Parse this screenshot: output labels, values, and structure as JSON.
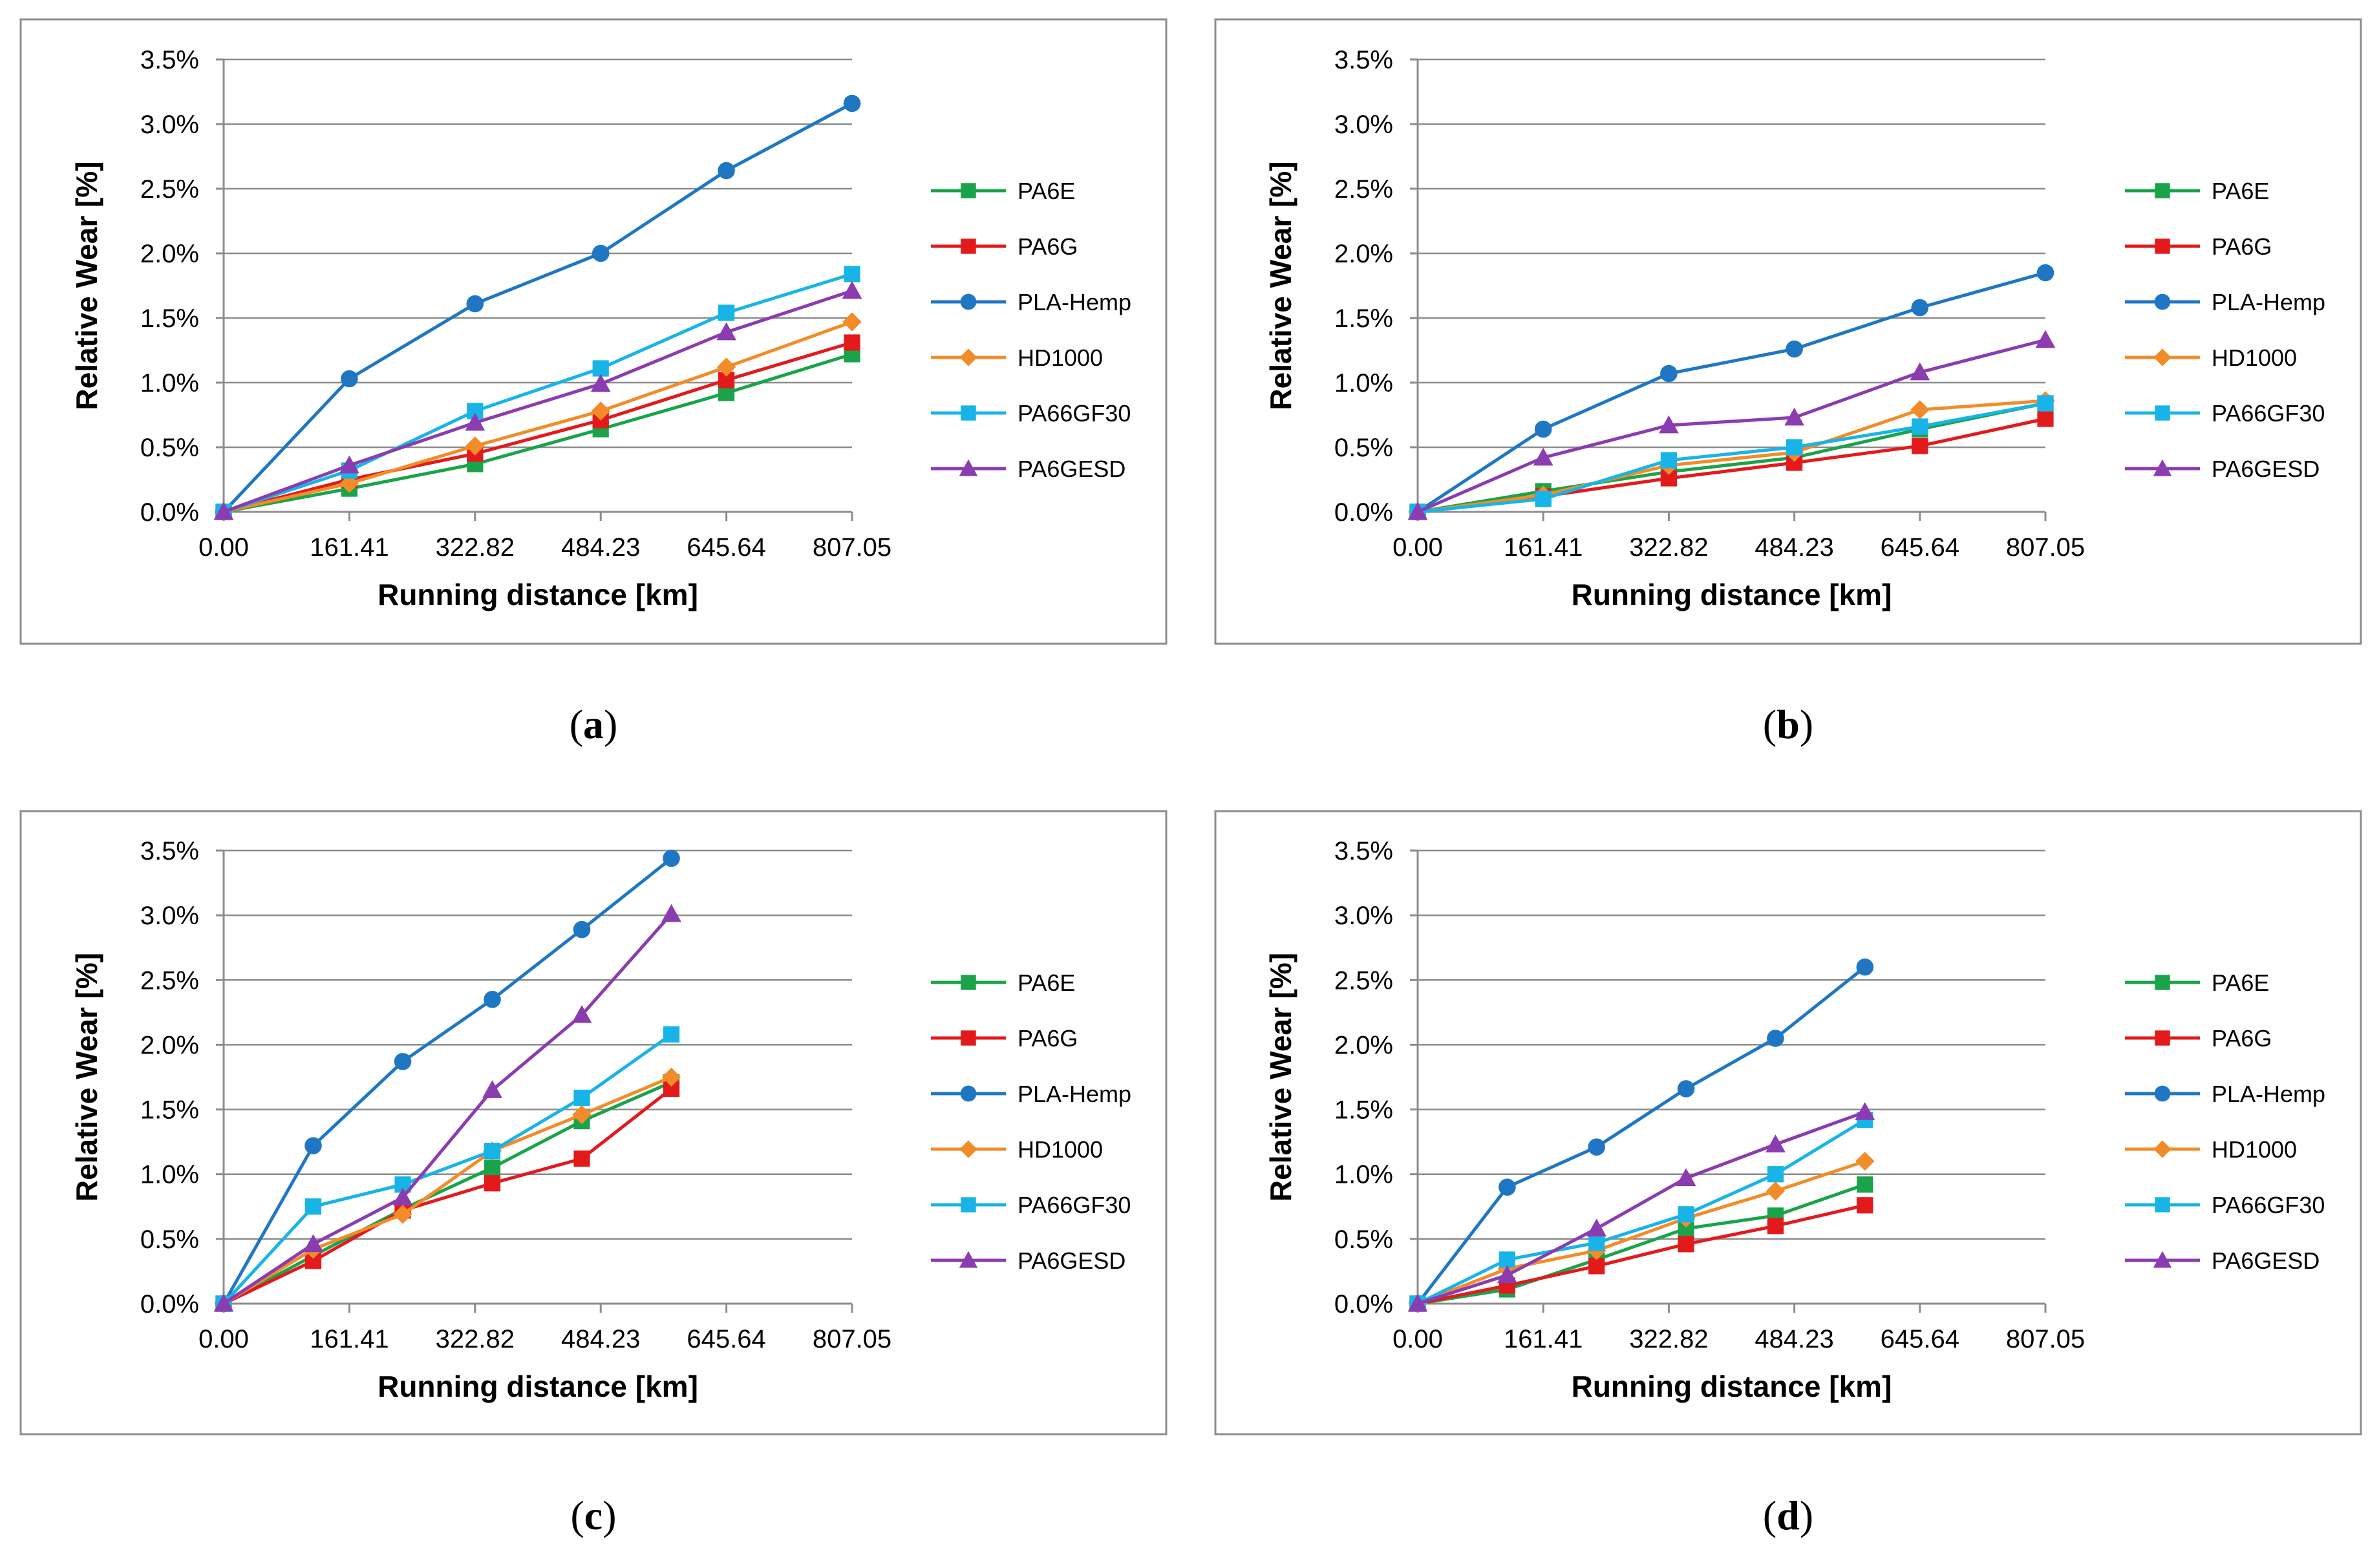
{
  "colors": {
    "PA6E": "#1aa34a",
    "PA6G": "#e31a1c",
    "PLA-Hemp": "#1f77c4",
    "HD1000": "#f28c28",
    "PA66GF30": "#18b4e8",
    "PA6GESD": "#8a3cb0"
  },
  "markers": {
    "PA6E": "square",
    "PA6G": "square",
    "PLA-Hemp": "circle",
    "HD1000": "diamond",
    "PA66GF30": "square",
    "PA6GESD": "triangle"
  },
  "chart_data": [
    {
      "id": "a",
      "caption_open": "(",
      "caption_letter": "a",
      "caption_close": ")",
      "type": "line",
      "xlabel": "Running distance [km]",
      "ylabel": "Relative Wear [%]",
      "xlim": [
        0,
        807.05
      ],
      "ylim": [
        0,
        3.5
      ],
      "x_ticks": [
        0,
        161.41,
        322.82,
        484.23,
        645.64,
        807.05
      ],
      "x_tick_labels": [
        "0.00",
        "161.41",
        "322.82",
        "484.23",
        "645.64",
        "807.05"
      ],
      "y_ticks": [
        0,
        0.5,
        1.0,
        1.5,
        2.0,
        2.5,
        3.0,
        3.5
      ],
      "y_tick_labels": [
        "0.0%",
        "0.5%",
        "1.0%",
        "1.5%",
        "2.0%",
        "2.5%",
        "3.0%",
        "3.5%"
      ],
      "legend": "right",
      "series": [
        {
          "name": "PA6E",
          "x": [
            0,
            161.41,
            322.82,
            484.23,
            645.64,
            807.05
          ],
          "values": [
            0,
            0.18,
            0.37,
            0.64,
            0.92,
            1.22
          ]
        },
        {
          "name": "PA6G",
          "x": [
            0,
            161.41,
            322.82,
            484.23,
            645.64,
            807.05
          ],
          "values": [
            0,
            0.25,
            0.45,
            0.71,
            1.02,
            1.31
          ]
        },
        {
          "name": "PLA-Hemp",
          "x": [
            0,
            161.41,
            322.82,
            484.23,
            645.64,
            807.05
          ],
          "values": [
            0,
            1.03,
            1.61,
            2.0,
            2.64,
            3.16
          ]
        },
        {
          "name": "HD1000",
          "x": [
            0,
            161.41,
            322.82,
            484.23,
            645.64,
            807.05
          ],
          "values": [
            0,
            0.22,
            0.51,
            0.78,
            1.12,
            1.47
          ]
        },
        {
          "name": "PA66GF30",
          "x": [
            0,
            161.41,
            322.82,
            484.23,
            645.64,
            807.05
          ],
          "values": [
            0,
            0.32,
            0.78,
            1.11,
            1.54,
            1.84
          ]
        },
        {
          "name": "PA6GESD",
          "x": [
            0,
            161.41,
            322.82,
            484.23,
            645.64,
            807.05
          ],
          "values": [
            0,
            0.36,
            0.69,
            0.99,
            1.39,
            1.71
          ]
        }
      ]
    },
    {
      "id": "b",
      "caption_open": "(",
      "caption_letter": "b",
      "caption_close": ")",
      "type": "line",
      "xlabel": "Running distance [km]",
      "ylabel": "Relative Wear [%]",
      "xlim": [
        0,
        807.05
      ],
      "ylim": [
        0,
        3.5
      ],
      "x_ticks": [
        0,
        161.41,
        322.82,
        484.23,
        645.64,
        807.05
      ],
      "x_tick_labels": [
        "0.00",
        "161.41",
        "322.82",
        "484.23",
        "645.64",
        "807.05"
      ],
      "y_ticks": [
        0,
        0.5,
        1.0,
        1.5,
        2.0,
        2.5,
        3.0,
        3.5
      ],
      "y_tick_labels": [
        "0.0%",
        "0.5%",
        "1.0%",
        "1.5%",
        "2.0%",
        "2.5%",
        "3.0%",
        "3.5%"
      ],
      "legend": "right",
      "series": [
        {
          "name": "PA6E",
          "x": [
            0,
            161.41,
            322.82,
            484.23,
            645.64,
            807.05
          ],
          "values": [
            0,
            0.16,
            0.31,
            0.42,
            0.64,
            0.84
          ]
        },
        {
          "name": "PA6G",
          "x": [
            0,
            161.41,
            322.82,
            484.23,
            645.64,
            807.05
          ],
          "values": [
            0,
            0.12,
            0.26,
            0.38,
            0.51,
            0.72
          ]
        },
        {
          "name": "PLA-Hemp",
          "x": [
            0,
            161.41,
            322.82,
            484.23,
            645.64,
            807.05
          ],
          "values": [
            0,
            0.64,
            1.07,
            1.26,
            1.58,
            1.85
          ]
        },
        {
          "name": "HD1000",
          "x": [
            0,
            161.41,
            322.82,
            484.23,
            645.64,
            807.05
          ],
          "values": [
            0,
            0.13,
            0.36,
            0.46,
            0.79,
            0.86
          ]
        },
        {
          "name": "PA66GF30",
          "x": [
            0,
            161.41,
            322.82,
            484.23,
            645.64,
            807.05
          ],
          "values": [
            0,
            0.1,
            0.4,
            0.5,
            0.66,
            0.84
          ]
        },
        {
          "name": "PA6GESD",
          "x": [
            0,
            161.41,
            322.82,
            484.23,
            645.64,
            807.05
          ],
          "values": [
            0,
            0.42,
            0.67,
            0.73,
            1.08,
            1.33
          ]
        }
      ]
    },
    {
      "id": "c",
      "caption_open": "(",
      "caption_letter": "c",
      "caption_close": ")",
      "type": "line",
      "xlabel": "Running distance [km]",
      "ylabel": "Relative Wear [%]",
      "xlim": [
        0,
        807.05
      ],
      "ylim": [
        0,
        3.5
      ],
      "x_ticks": [
        0,
        161.41,
        322.82,
        484.23,
        645.64,
        807.05
      ],
      "x_tick_labels": [
        "0.00",
        "161.41",
        "322.82",
        "484.23",
        "645.64",
        "807.05"
      ],
      "y_ticks": [
        0,
        0.5,
        1.0,
        1.5,
        2.0,
        2.5,
        3.0,
        3.5
      ],
      "y_tick_labels": [
        "0.0%",
        "0.5%",
        "1.0%",
        "1.5%",
        "2.0%",
        "2.5%",
        "3.0%",
        "3.5%"
      ],
      "legend": "right",
      "series": [
        {
          "name": "PA6E",
          "x": [
            0,
            115,
            230,
            345,
            460,
            575
          ],
          "values": [
            0,
            0.37,
            0.73,
            1.05,
            1.41,
            1.71
          ]
        },
        {
          "name": "PA6G",
          "x": [
            0,
            115,
            230,
            345,
            460,
            575
          ],
          "values": [
            0,
            0.33,
            0.72,
            0.93,
            1.12,
            1.66
          ]
        },
        {
          "name": "PLA-Hemp",
          "x": [
            0,
            115,
            230,
            345,
            460,
            575
          ],
          "values": [
            0,
            1.22,
            1.87,
            2.35,
            2.89,
            3.44
          ]
        },
        {
          "name": "HD1000",
          "x": [
            0,
            115,
            230,
            345,
            460,
            575
          ],
          "values": [
            0,
            0.42,
            0.69,
            1.18,
            1.46,
            1.75
          ]
        },
        {
          "name": "PA66GF30",
          "x": [
            0,
            115,
            230,
            345,
            460,
            575
          ],
          "values": [
            0,
            0.75,
            0.92,
            1.18,
            1.59,
            2.08
          ]
        },
        {
          "name": "PA6GESD",
          "x": [
            0,
            115,
            230,
            345,
            460,
            575
          ],
          "values": [
            0,
            0.46,
            0.82,
            1.65,
            2.23,
            3.01
          ]
        }
      ]
    },
    {
      "id": "d",
      "caption_open": "(",
      "caption_letter": "d",
      "caption_close": ")",
      "type": "line",
      "xlabel": "Running distance [km]",
      "ylabel": "Relative Wear [%]",
      "xlim": [
        0,
        807.05
      ],
      "ylim": [
        0,
        3.5
      ],
      "x_ticks": [
        0,
        161.41,
        322.82,
        484.23,
        645.64,
        807.05
      ],
      "x_tick_labels": [
        "0.00",
        "161.41",
        "322.82",
        "484.23",
        "645.64",
        "807.05"
      ],
      "y_ticks": [
        0,
        0.5,
        1.0,
        1.5,
        2.0,
        2.5,
        3.0,
        3.5
      ],
      "y_tick_labels": [
        "0.0%",
        "0.5%",
        "1.0%",
        "1.5%",
        "2.0%",
        "2.5%",
        "3.0%",
        "3.5%"
      ],
      "legend": "right",
      "series": [
        {
          "name": "PA6E",
          "x": [
            0,
            115,
            230,
            345,
            460,
            575
          ],
          "values": [
            0,
            0.11,
            0.34,
            0.58,
            0.68,
            0.92
          ]
        },
        {
          "name": "PA6G",
          "x": [
            0,
            115,
            230,
            345,
            460,
            575
          ],
          "values": [
            0,
            0.14,
            0.29,
            0.46,
            0.6,
            0.76
          ]
        },
        {
          "name": "PLA-Hemp",
          "x": [
            0,
            115,
            230,
            345,
            460,
            575
          ],
          "values": [
            0,
            0.9,
            1.21,
            1.66,
            2.05,
            2.6
          ]
        },
        {
          "name": "HD1000",
          "x": [
            0,
            115,
            230,
            345,
            460,
            575
          ],
          "values": [
            0,
            0.27,
            0.41,
            0.66,
            0.87,
            1.1
          ]
        },
        {
          "name": "PA66GF30",
          "x": [
            0,
            115,
            230,
            345,
            460,
            575
          ],
          "values": [
            0,
            0.34,
            0.47,
            0.69,
            1.0,
            1.42
          ]
        },
        {
          "name": "PA6GESD",
          "x": [
            0,
            115,
            230,
            345,
            460,
            575
          ],
          "values": [
            0,
            0.22,
            0.58,
            0.97,
            1.23,
            1.48
          ]
        }
      ]
    }
  ]
}
